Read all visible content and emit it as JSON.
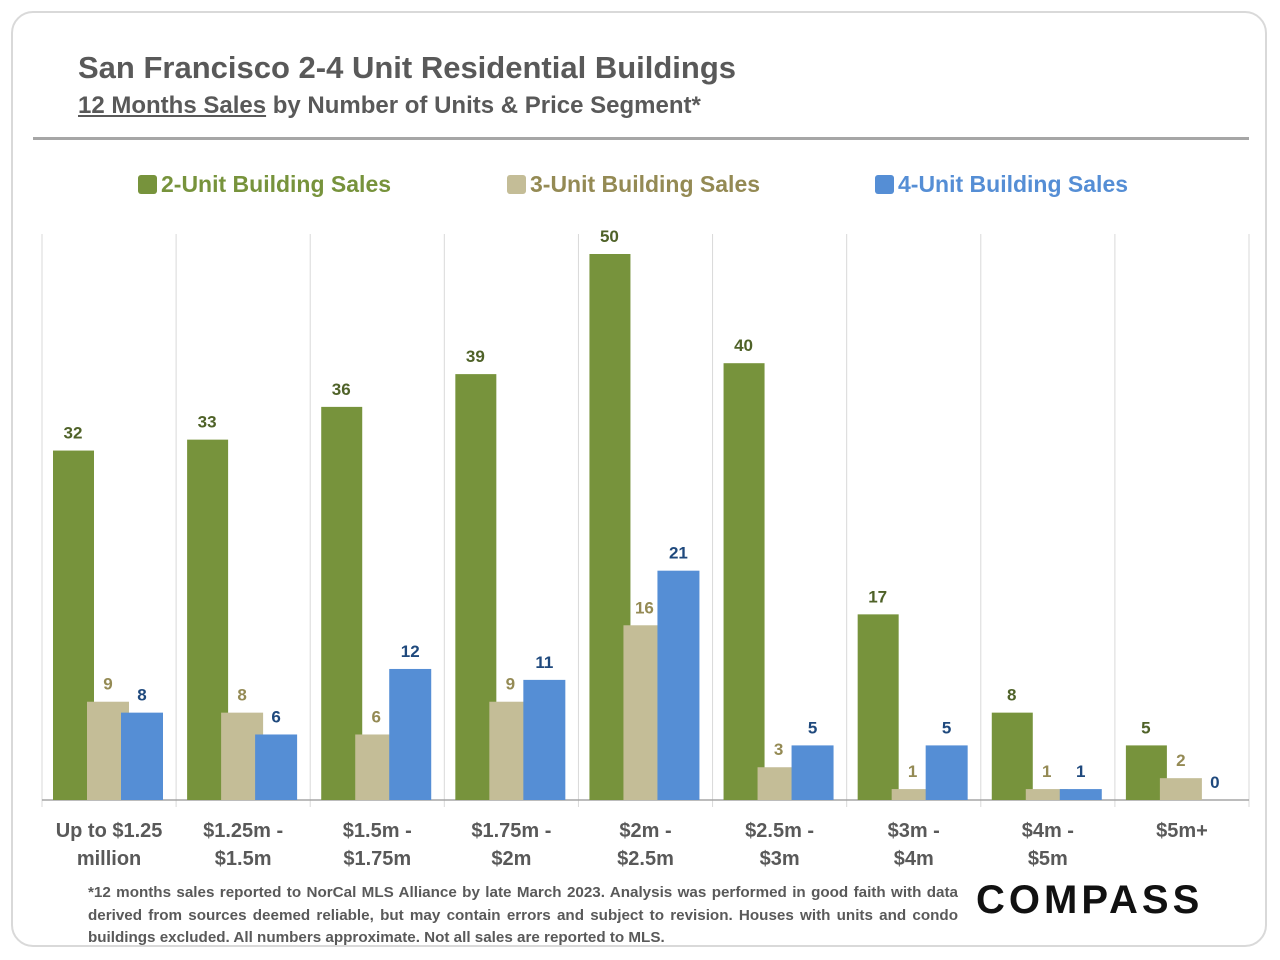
{
  "title": "San Francisco 2-4 Unit Residential Buildings",
  "subtitle_underlined": "12 Months Sales",
  "subtitle_rest": " by Number of Units & Price Segment*",
  "logo": "COMPASS",
  "footnote": "*12 months sales reported to NorCal MLS Alliance by late March 2023. Analysis was performed in good faith with data derived from sources deemed reliable, but may contain errors and subject to revision. Houses with units and condo buildings excluded. All numbers approximate. Not all sales are reported to MLS.",
  "colors": {
    "two_unit": "#77933c",
    "three_unit": "#c4bd97",
    "four_unit": "#558ed5",
    "two_unit_label": "#4f6228",
    "three_unit_label": "#948a54",
    "four_unit_label": "#1f497d",
    "text": "#595959"
  },
  "chart_data": {
    "type": "bar",
    "title": "San Francisco 2-4 Unit Residential Buildings",
    "subtitle": "12 Months Sales by Number of Units & Price Segment*",
    "categories": [
      [
        "Up to $1.25",
        "million"
      ],
      [
        "$1.25m -",
        "$1.5m"
      ],
      [
        "$1.5m -",
        "$1.75m"
      ],
      [
        "$1.75m -",
        "$2m"
      ],
      [
        "$2m -",
        "$2.5m"
      ],
      [
        "$2.5m -",
        "$3m"
      ],
      [
        "$3m -",
        "$4m"
      ],
      [
        "$4m -",
        "$5m"
      ],
      [
        "$5m+"
      ]
    ],
    "series": [
      {
        "name": "2-Unit Building Sales",
        "key": "two_unit",
        "values": [
          32,
          33,
          36,
          39,
          50,
          40,
          17,
          8,
          5
        ]
      },
      {
        "name": "3-Unit Building Sales",
        "key": "three_unit",
        "values": [
          9,
          8,
          6,
          9,
          16,
          3,
          1,
          1,
          2
        ]
      },
      {
        "name": "4-Unit Building Sales",
        "key": "four_unit",
        "values": [
          8,
          6,
          12,
          11,
          21,
          5,
          5,
          1,
          0
        ]
      }
    ],
    "ylim": [
      0,
      52
    ],
    "legend": "top",
    "grid": "vertical category separators",
    "xlabel": "",
    "ylabel": ""
  }
}
